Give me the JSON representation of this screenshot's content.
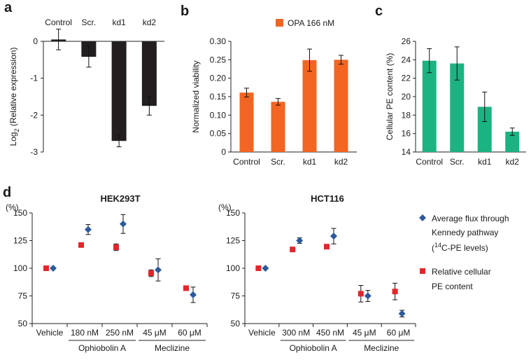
{
  "panel_labels": [
    "a",
    "b",
    "c",
    "d"
  ],
  "chart_data": [
    {
      "id": "a",
      "type": "bar",
      "categories": [
        "Control",
        "Scr.",
        "kd1",
        "kd2"
      ],
      "values": [
        0.05,
        -0.42,
        -2.7,
        -1.75
      ],
      "errors": [
        0.28,
        0.28,
        0.16,
        0.25
      ],
      "ylabel_main": "Log",
      "ylabel_sub": "2",
      "ylabel_rest": " (Relative expression)",
      "ylim": [
        -3,
        0
      ],
      "yticks": [
        0,
        -1,
        -2,
        -3
      ],
      "ytick_labels": [
        "0",
        "-1",
        "-2",
        "-3"
      ],
      "color": "#231f20"
    },
    {
      "id": "b",
      "type": "bar",
      "categories": [
        "Control",
        "Scr.",
        "kd1",
        "kd2"
      ],
      "values": [
        0.161,
        0.136,
        0.249,
        0.25
      ],
      "errors": [
        0.012,
        0.009,
        0.03,
        0.012
      ],
      "ylabel": "Normalized viability",
      "legend": "OPA 166 nM",
      "ylim": [
        0,
        0.3
      ],
      "yticks": [
        0,
        0.05,
        0.1,
        0.15,
        0.2,
        0.25,
        0.3
      ],
      "ytick_labels": [
        "0",
        "0.05",
        "0.10",
        "0.15",
        "0.20",
        "0.25",
        "0.30"
      ],
      "color": "#f26522"
    },
    {
      "id": "c",
      "type": "bar",
      "categories": [
        "Control",
        "Scr.",
        "kd1",
        "kd2"
      ],
      "values": [
        23.9,
        23.6,
        18.9,
        16.2
      ],
      "errors": [
        1.3,
        1.8,
        1.6,
        0.4
      ],
      "ylabel": "Cellular PE content (%)",
      "ylim": [
        14,
        26
      ],
      "yticks": [
        14,
        16,
        18,
        20,
        22,
        24,
        26
      ],
      "ytick_labels": [
        "14",
        "16",
        "18",
        "20",
        "22",
        "24",
        "26"
      ],
      "color": "#1cb383"
    },
    {
      "id": "d-left",
      "type": "scatter",
      "title": "HEK293T",
      "ylabel": "(%)",
      "ylim": [
        50,
        150
      ],
      "yticks": [
        50,
        75,
        100,
        125,
        150
      ],
      "ytick_labels": [
        "50",
        "75",
        "100",
        "125",
        "150"
      ],
      "categories": [
        "Vehicle",
        "180 nM",
        "250 nM",
        "45 μM",
        "60 μM"
      ],
      "groups": [
        {
          "label": "Ophiobolin A",
          "from": 1,
          "to": 2
        },
        {
          "label": "Meclizine",
          "from": 3,
          "to": 4
        }
      ],
      "series": [
        {
          "name": "Relative cellular PE content",
          "marker": "square",
          "color": "#e3262b",
          "values": [
            100,
            121,
            119,
            95.5,
            82
          ],
          "errors": [
            0,
            2,
            3,
            3,
            1.5
          ]
        },
        {
          "name": "Average flux through Kennedy pathway",
          "marker": "diamond",
          "color": "#2e5a9c",
          "values": [
            100,
            135,
            140,
            98.5,
            76
          ],
          "errors": [
            0,
            4.5,
            8.5,
            10,
            7
          ]
        }
      ]
    },
    {
      "id": "d-right",
      "type": "scatter",
      "title": "HCT116",
      "ylabel": "(%)",
      "ylim": [
        50,
        150
      ],
      "yticks": [
        50,
        75,
        100,
        125,
        150
      ],
      "ytick_labels": [
        "50",
        "75",
        "100",
        "125",
        "150"
      ],
      "categories": [
        "Vehicle",
        "300 nM",
        "450 nM",
        "45 μM",
        "60 μM"
      ],
      "groups": [
        {
          "label": "Ophiobolin A",
          "from": 1,
          "to": 2
        },
        {
          "label": "Meclizine",
          "from": 3,
          "to": 4
        }
      ],
      "series": [
        {
          "name": "Relative cellular PE content",
          "marker": "square",
          "color": "#e3262b",
          "values": [
            100,
            117,
            119.5,
            77,
            79
          ],
          "errors": [
            0,
            1.5,
            1.5,
            7.5,
            7.5
          ]
        },
        {
          "name": "Average flux through Kennedy pathway",
          "marker": "diamond",
          "color": "#2e5a9c",
          "values": [
            100,
            125,
            129,
            75,
            59
          ],
          "errors": [
            0,
            2.5,
            7,
            5,
            3
          ]
        }
      ]
    }
  ],
  "legend_d": [
    {
      "marker": "diamond",
      "color": "#2e5a9c",
      "lines": [
        "Average flux through",
        "Kennedy pathway",
        "("
      ],
      "sup": "14",
      "tail": "C-PE levels)"
    },
    {
      "marker": "square",
      "color": "#e3262b",
      "lines": [
        "Relative cellular",
        "PE content"
      ]
    }
  ]
}
